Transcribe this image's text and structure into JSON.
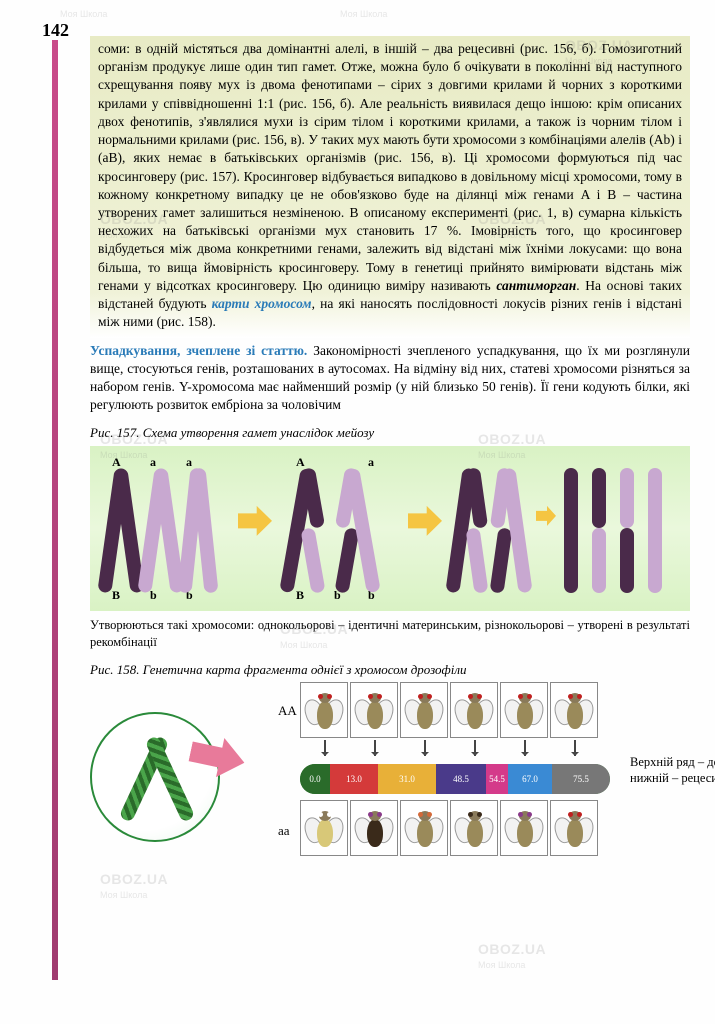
{
  "page_number": "142",
  "para1_parts": {
    "a": "соми: в одній містяться два домінантні алелі, в іншій – два рецесивні (рис. 156, б). Гомозиготний організм продукує лише один тип гамет. Отже, можна було б очікувати в поколінні від наступного схрещування появу мух із двома фенотипами – сірих з довгими крилами й чорних з короткими крилами у співвідношенні 1:1 (рис. 156, б). Але реальність виявилася дещо іншою: крім описаних двох фенотипів, з'являлися мухи із сірим тілом і короткими крилами, а також із чорним тілом і нормальними крилами (рис. 156, в). У таких мух мають бути хромосоми з комбінаціями алелів (Ab) і (aB), яких немає в батьківських організмів (рис. 156, в). Ці хромосоми формуються під час кросинговеру (рис. 157). Кросинговер відбувається випадково в довільному місці хромосоми, тому в кожному конкретному випадку це не обов'язково буде на ділянці між генами A і B – частина утворених гамет залишиться незміненою. В описаному експерименті (рис. 1, в) сумарна кількість несхожих на батьківські організми мух становить 17 %. Імовірність того, що кросинговер відбудеться між двома конкретними генами, залежить від відстані між їхніми локусами: що вона більша, то вища ймовірність кросинговеру. Тому в генетиці прийнято вимірювати відстань між генами у відсотках кросинговеру. Цю одиницю виміру називають ",
    "term1": "сантиморган",
    "b": ". На основі таких відстаней будують ",
    "term2": "карти хромосом",
    "c": ", на які наносять послідовності локусів різних генів і відстані між ними (рис. 158)."
  },
  "para2_parts": {
    "lead": "Успадкування, зчеплене зі статтю.",
    "rest": " Закономірності зчепленого успадкування, що їх ми розглянули вище, стосуються генів, розташованих в аутосомах. На відміну від них, статеві хромосоми різняться за набором генів. Y-хромосома має найменший розмір (у ній близько 50 генів). Її гени кодують білки, які регулюють розвиток ембріона за чоловічим"
  },
  "fig157": {
    "caption": "Рис. 157. Схема утворення гамет унаслідок мейозу",
    "subcaption": "Утворюються такі хромосоми: однокольорові – ідентичні материнським, різнокольорові – утворені в результаті рекомбінації",
    "labels": {
      "A": "A",
      "a": "a",
      "B": "B",
      "b": "b"
    },
    "colors": {
      "dark": "#4a2a4a",
      "light": "#c8a8d0",
      "bg_top": "#d9f2c4",
      "arrow": "#f5c542"
    }
  },
  "fig158": {
    "caption": "Рис. 158. Генетична карта фрагмента однієї з хромосом дрозофіли",
    "label_AA": "AA",
    "label_aa": "aa",
    "right_caption": "Верхній ряд – домінантні ознаки, нижній – рецесивні",
    "map": {
      "positions": [
        "0.0",
        "13.0",
        "31.0",
        "48.5",
        "54.5",
        "67.0",
        "75.5"
      ],
      "seg_colors": [
        "#2a6b2a",
        "#d43a3a",
        "#e8b038",
        "#4a3a8a",
        "#d43a8a",
        "#3a8ad4",
        "#777"
      ],
      "seg_widths": [
        30,
        48,
        58,
        50,
        22,
        44,
        58
      ]
    },
    "flies": {
      "top": [
        {
          "body": "#9a8a5a",
          "eye": "#c02020"
        },
        {
          "body": "#9a8a5a",
          "eye": "#c02020"
        },
        {
          "body": "#9a8a5a",
          "eye": "#c02020"
        },
        {
          "body": "#9a8a5a",
          "eye": "#c02020"
        },
        {
          "body": "#9a8a5a",
          "eye": "#c02020"
        },
        {
          "body": "#9a8a5a",
          "eye": "#c02020"
        }
      ],
      "bot": [
        {
          "body": "#d8c878",
          "eye": "#ffffff"
        },
        {
          "body": "#3a2a1a",
          "eye": "#8a3a8a"
        },
        {
          "body": "#9a8a5a",
          "eye": "#d46a3a"
        },
        {
          "body": "#9a8a5a",
          "eye": "#3a2a1a"
        },
        {
          "body": "#9a8a5a",
          "eye": "#8a3a8a"
        },
        {
          "body": "#9a8a5a",
          "eye": "#c02020"
        }
      ]
    }
  },
  "watermarks": {
    "main": "OBOZ.UA",
    "sub": "Моя Школа"
  }
}
